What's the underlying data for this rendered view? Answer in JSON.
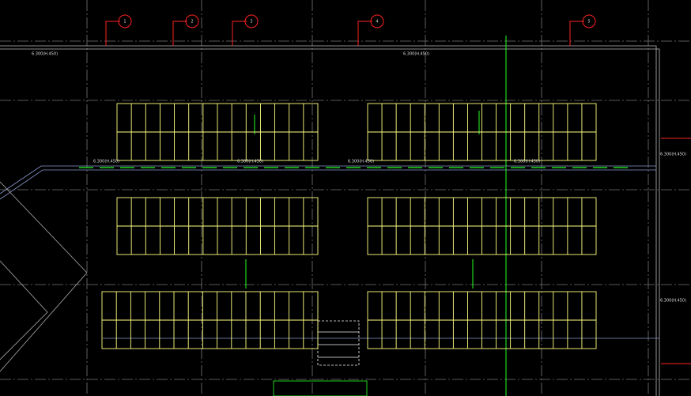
{
  "drawing": {
    "labels": [
      {
        "text": "6.300(H.450)"
      },
      {
        "text": "6.300(H.450)"
      },
      {
        "text": "6.300(H.450)"
      },
      {
        "text": "6.300(H.450)"
      },
      {
        "text": "6.300(H.450)"
      },
      {
        "text": "6.300(H.450)"
      },
      {
        "text": "6.300(H.450)"
      },
      {
        "text": "6.300(H.450)"
      }
    ],
    "markers": [
      {
        "text": "1"
      },
      {
        "text": "2"
      },
      {
        "text": "3"
      },
      {
        "text": "4"
      },
      {
        "text": "5"
      }
    ]
  }
}
